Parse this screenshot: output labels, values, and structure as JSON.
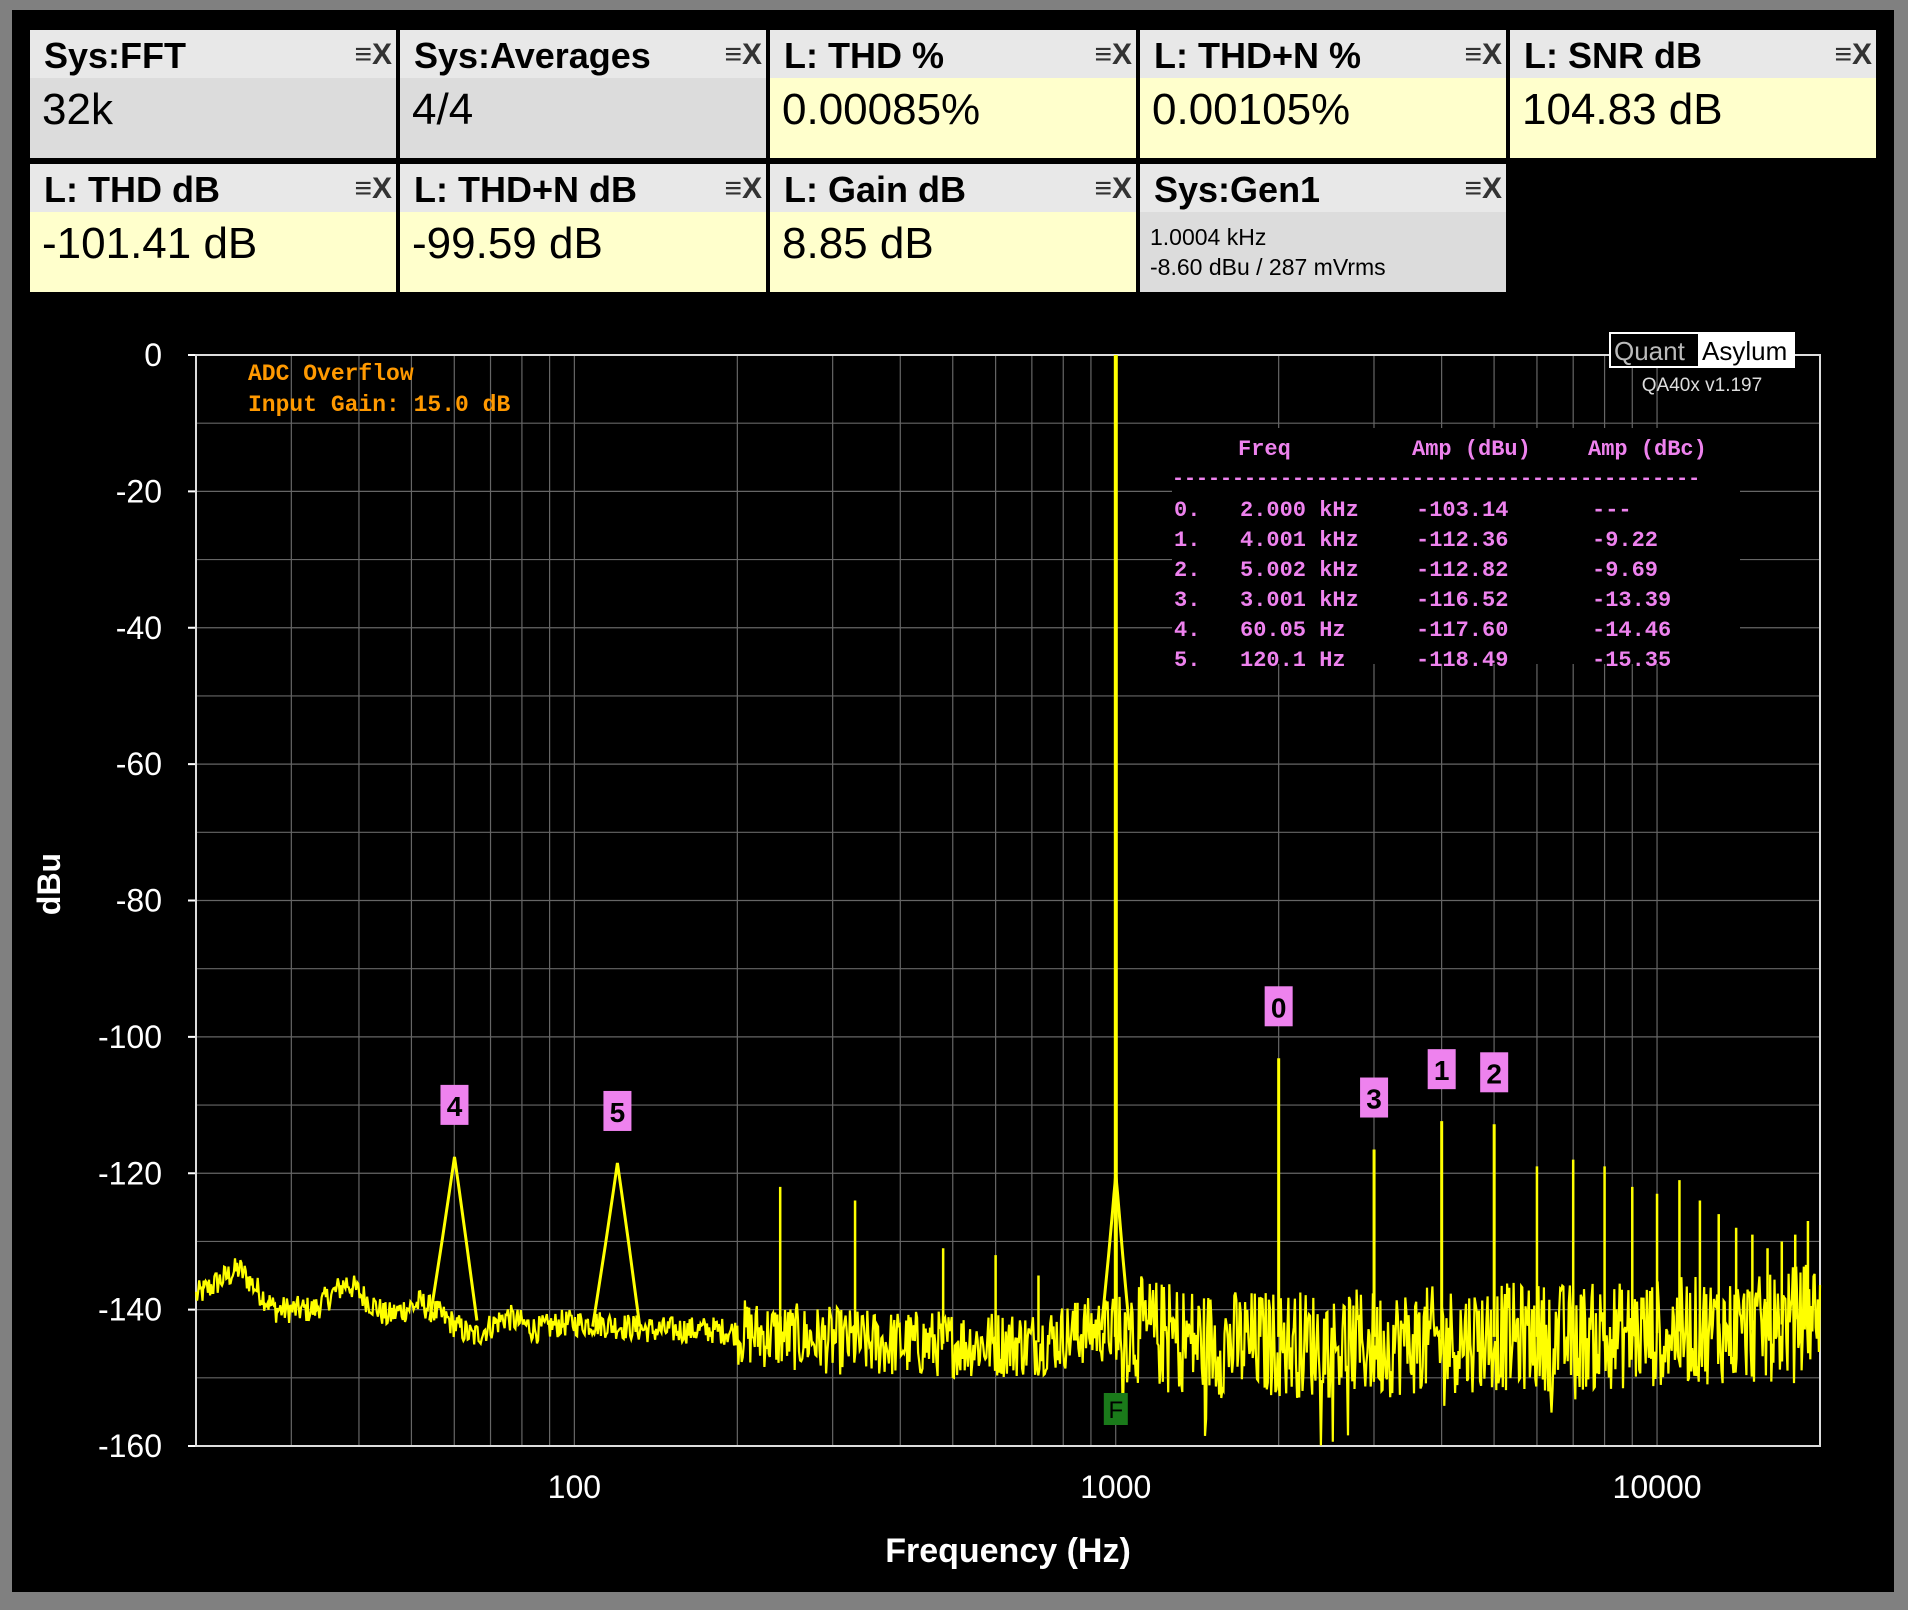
{
  "widgets": [
    {
      "title": "Sys:FFT",
      "value": "32k",
      "bg": "#dcdcdc"
    },
    {
      "title": "Sys:Averages",
      "value": "4/4",
      "bg": "#dcdcdc"
    },
    {
      "title": "L: THD %",
      "value": "0.00085%",
      "bg": "#ffffcc"
    },
    {
      "title": "L: THD+N %",
      "value": "0.00105%",
      "bg": "#ffffcc"
    },
    {
      "title": "L: SNR dB",
      "value": "104.83 dB",
      "bg": "#ffffcc"
    },
    {
      "title": "L: THD dB",
      "value": "-101.41 dB",
      "bg": "#ffffcc"
    },
    {
      "title": "L: THD+N dB",
      "value": "-99.59 dB",
      "bg": "#ffffcc"
    },
    {
      "title": "L: Gain dB",
      "value": "8.85 dB",
      "bg": "#ffffcc"
    },
    {
      "title": "Sys:Gen1",
      "line1": "1.0004 kHz",
      "line2": "-8.60 dBu  / 287 mVrms",
      "bg": "#dcdcdc"
    }
  ],
  "widget_controls": "≡X",
  "overlay": {
    "line1": "ADC Overflow",
    "line2": "Input Gain: 15.0 dB",
    "color": "#ff9900"
  },
  "brand": {
    "name_a": "Quant",
    "name_b": "Asylum",
    "version": "QA40x v1.197"
  },
  "harmonic_table": {
    "headers": [
      "Freq",
      "Amp (dBu)",
      "Amp (dBc)"
    ],
    "divider": "--------------------------------------------",
    "rows": [
      [
        "0.",
        "2.000 kHz",
        "-103.14",
        "---"
      ],
      [
        "1.",
        "4.001 kHz",
        "-112.36",
        "-9.22"
      ],
      [
        "2.",
        "5.002 kHz",
        "-112.82",
        "-9.69"
      ],
      [
        "3.",
        "3.001 kHz",
        "-116.52",
        "-13.39"
      ],
      [
        "4.",
        "60.05 Hz",
        "-117.60",
        "-14.46"
      ],
      [
        "5.",
        "120.1 Hz",
        "-118.49",
        "-15.35"
      ]
    ],
    "color": "#ee82ee"
  },
  "chart_data": {
    "type": "line",
    "xlabel": "Frequency (Hz)",
    "ylabel": "dBu",
    "x_scale": "log",
    "xlim": [
      20,
      20000
    ],
    "ylim": [
      -160,
      0
    ],
    "x_ticks": [
      100,
      1000,
      10000
    ],
    "x_tick_labels": [
      "100",
      "1000",
      "10000"
    ],
    "y_ticks": [
      0,
      -20,
      -40,
      -60,
      -80,
      -100,
      -120,
      -140,
      -160
    ],
    "y_tick_labels": [
      "0",
      "-20",
      "-40",
      "-60",
      "-80",
      "-100",
      "-120",
      "-140",
      "-160"
    ],
    "grid": true,
    "series_color": "#ffff00",
    "noise_floor": [
      [
        20,
        -138
      ],
      [
        24,
        -134
      ],
      [
        28,
        -140
      ],
      [
        33,
        -140
      ],
      [
        38,
        -136
      ],
      [
        45,
        -141
      ],
      [
        52,
        -139
      ],
      [
        57,
        -141
      ],
      [
        65,
        -144
      ],
      [
        75,
        -141
      ],
      [
        85,
        -143
      ],
      [
        95,
        -142
      ],
      [
        110,
        -142
      ],
      [
        140,
        -143
      ],
      [
        180,
        -143
      ],
      [
        250,
        -144
      ],
      [
        350,
        -145
      ],
      [
        500,
        -145
      ],
      [
        700,
        -145
      ],
      [
        900,
        -143
      ],
      [
        1100,
        -143
      ],
      [
        1500,
        -145
      ],
      [
        2000,
        -145
      ],
      [
        3000,
        -145
      ],
      [
        5000,
        -144
      ],
      [
        8000,
        -144
      ],
      [
        12000,
        -143
      ],
      [
        16000,
        -143
      ],
      [
        20000,
        -140
      ]
    ],
    "spurs": [
      [
        240,
        -122
      ],
      [
        330,
        -124
      ],
      [
        480,
        -131
      ],
      [
        600,
        -132
      ],
      [
        720,
        -135
      ],
      [
        850,
        -139
      ],
      [
        6000,
        -119
      ],
      [
        7000,
        -118
      ],
      [
        8000,
        -119
      ],
      [
        9000,
        -122
      ],
      [
        10000,
        -123
      ],
      [
        11000,
        -121
      ],
      [
        12000,
        -124
      ],
      [
        13000,
        -126
      ],
      [
        14000,
        -128
      ],
      [
        15000,
        -129
      ],
      [
        16000,
        -131
      ],
      [
        17000,
        -130
      ],
      [
        18000,
        -129
      ],
      [
        19000,
        -127
      ]
    ],
    "fundamental": {
      "freq": 1000.4,
      "amp": 0,
      "marker_label": "F"
    },
    "harmonics": [
      {
        "label": "0",
        "freq": 2000,
        "amp": -103.14
      },
      {
        "label": "1",
        "freq": 4001,
        "amp": -112.36
      },
      {
        "label": "2",
        "freq": 5002,
        "amp": -112.82
      },
      {
        "label": "3",
        "freq": 3001,
        "amp": -116.52
      },
      {
        "label": "4",
        "freq": 60.05,
        "amp": -117.6
      },
      {
        "label": "5",
        "freq": 120.1,
        "amp": -118.49
      }
    ]
  }
}
